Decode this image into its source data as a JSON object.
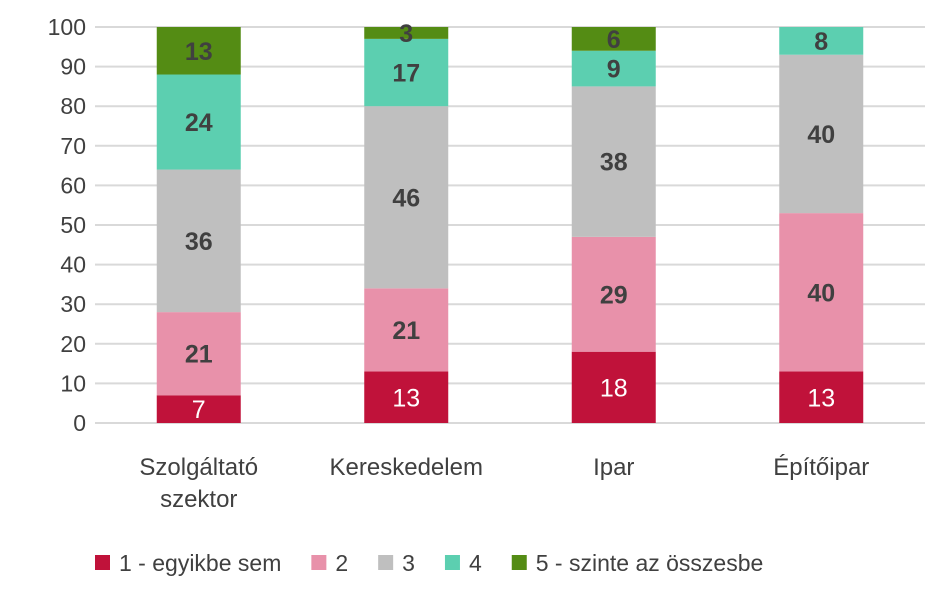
{
  "chart_data": {
    "type": "bar",
    "stacked": true,
    "categories": [
      [
        "Szolgáltató",
        "szektor"
      ],
      [
        "Kereskedelem"
      ],
      [
        "Ipar"
      ],
      [
        "Építőipar"
      ]
    ],
    "series": [
      {
        "name": "1 - egyikbe sem",
        "color": "#C0123A",
        "values": [
          7,
          13,
          18,
          13
        ]
      },
      {
        "name": "2",
        "color": "#E891AA",
        "values": [
          21,
          21,
          29,
          40
        ]
      },
      {
        "name": "3",
        "color": "#BFBFBF",
        "values": [
          36,
          46,
          38,
          40
        ]
      },
      {
        "name": "4",
        "color": "#5CCFB0",
        "values": [
          24,
          17,
          9,
          8
        ]
      },
      {
        "name": "5 - szinte az összesbe",
        "color": "#548C14",
        "values": [
          13,
          3,
          6,
          null
        ]
      }
    ],
    "ylim": [
      0,
      100
    ],
    "yticks": [
      0,
      10,
      20,
      30,
      40,
      50,
      60,
      70,
      80,
      90,
      100
    ],
    "grid": true,
    "legend": "bottom"
  }
}
